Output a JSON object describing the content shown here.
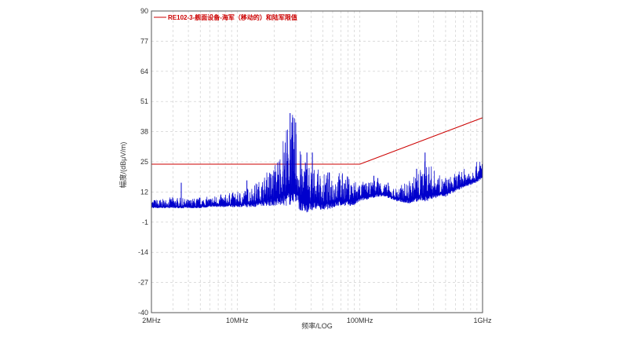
{
  "chart_data": {
    "type": "line",
    "xlabel": "频率/LOG",
    "ylabel": "幅度/(dBμV/m)",
    "x_scale": "log",
    "xlim": [
      "2MHz",
      "1GHz"
    ],
    "xlim_hz": [
      2000000,
      1000000000
    ],
    "x_ticks": [
      {
        "label": "2MHz",
        "hz": 2000000
      },
      {
        "label": "10MHz",
        "hz": 10000000
      },
      {
        "label": "100MHz",
        "hz": 100000000
      },
      {
        "label": "1GHz",
        "hz": 1000000000
      }
    ],
    "ylim": [
      -40,
      90
    ],
    "y_ticks": [
      -40,
      -27,
      -14,
      -1,
      12,
      25,
      38,
      51,
      64,
      77,
      90
    ],
    "grid": true,
    "legend_position": "top-left",
    "colors": {
      "limit": "#cc0000",
      "measurement": "#0000cc",
      "grid": "#c8c8c8",
      "frame": "#555555"
    },
    "series": [
      {
        "name": "RE102-3-舰面设备-海军（移动的）和陆军限值",
        "kind": "limit",
        "x_mhz": [
          2,
          100,
          1000
        ],
        "y": [
          24,
          24,
          44
        ]
      },
      {
        "name": "",
        "kind": "measurement",
        "envelope_x_mhz": [
          2,
          2.5,
          3,
          4,
          5,
          6,
          7,
          8,
          9,
          10,
          12,
          14,
          16,
          18,
          20,
          22,
          24,
          26,
          28,
          30,
          33,
          36,
          40,
          45,
          50,
          60,
          70,
          80,
          90,
          100,
          120,
          140,
          160,
          180,
          200,
          250,
          300,
          350,
          400,
          450,
          500,
          600,
          700,
          800,
          900,
          1000
        ],
        "envelope_low": [
          5,
          5,
          5,
          5,
          5,
          5.5,
          5.5,
          5.5,
          5.5,
          5.5,
          5.5,
          5.5,
          6,
          6,
          6,
          6,
          6,
          6,
          7,
          8,
          3,
          3,
          4,
          5,
          4,
          5,
          6,
          6,
          6,
          8,
          9,
          10,
          10,
          9,
          8,
          7,
          8,
          8,
          9,
          10,
          10,
          12,
          14,
          15,
          16,
          18
        ],
        "envelope_high": [
          9,
          9,
          10,
          9,
          10,
          10,
          11,
          11,
          12,
          12,
          14,
          16,
          18,
          22,
          24,
          30,
          38,
          43,
          46,
          45,
          29,
          29,
          24,
          22,
          20,
          22,
          21,
          19,
          18,
          17,
          16,
          18,
          16,
          14,
          14,
          17,
          21,
          27,
          22,
          19,
          18,
          20,
          22,
          23,
          25,
          27
        ],
        "peaks": [
          {
            "x_mhz": 3.5,
            "y": 16
          },
          {
            "x_mhz": 12,
            "y": 17
          },
          {
            "x_mhz": 27,
            "y": 46
          },
          {
            "x_mhz": 30,
            "y": 42
          },
          {
            "x_mhz": 37,
            "y": 29
          },
          {
            "x_mhz": 41,
            "y": 29
          },
          {
            "x_mhz": 130,
            "y": 19
          },
          {
            "x_mhz": 140,
            "y": 18
          },
          {
            "x_mhz": 170,
            "y": 16
          },
          {
            "x_mhz": 290,
            "y": 22
          },
          {
            "x_mhz": 340,
            "y": 29
          },
          {
            "x_mhz": 500,
            "y": 18
          }
        ]
      }
    ]
  }
}
